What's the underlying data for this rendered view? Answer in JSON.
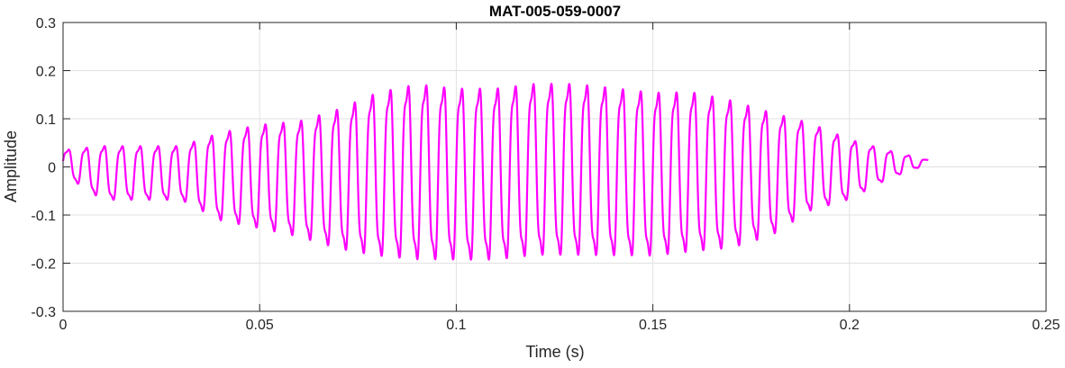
{
  "chart_data": {
    "type": "line",
    "title": "MAT-005-059-0007",
    "xlabel": "Time (s)",
    "ylabel": "Amplitude",
    "xlim": [
      0,
      0.25
    ],
    "ylim": [
      -0.3,
      0.3
    ],
    "xticks": [
      0,
      0.05,
      0.1,
      0.15,
      0.2,
      0.25
    ],
    "xtick_labels": [
      "0",
      "0.05",
      "0.1",
      "0.15",
      "0.2",
      "0.25"
    ],
    "yticks": [
      -0.3,
      -0.2,
      -0.1,
      0,
      0.1,
      0.2,
      0.3
    ],
    "ytick_labels": [
      "-0.3",
      "-0.2",
      "-0.1",
      "0",
      "0.1",
      "0.2",
      "0.3"
    ],
    "grid": true,
    "series": [
      {
        "color": "#ff00ff",
        "description_of_signal": "oscillating waveform, duration about 0.22 s, peak envelope about 0.21 near t=0.09-0.13 s",
        "envelope": {
          "t": [
            0,
            0.01,
            0.02,
            0.03,
            0.04,
            0.05,
            0.06,
            0.07,
            0.08,
            0.09,
            0.1,
            0.11,
            0.12,
            0.13,
            0.14,
            0.15,
            0.16,
            0.17,
            0.18,
            0.19,
            0.2,
            0.21,
            0.22
          ],
          "max": [
            0.04,
            0.055,
            0.055,
            0.055,
            0.09,
            0.11,
            0.12,
            0.15,
            0.19,
            0.21,
            0.2,
            0.2,
            0.21,
            0.21,
            0.2,
            0.19,
            0.19,
            0.17,
            0.14,
            0.11,
            0.07,
            0.04,
            0.015
          ],
          "min": [
            -0.02,
            -0.08,
            -0.08,
            -0.08,
            -0.13,
            -0.15,
            -0.17,
            -0.2,
            -0.22,
            -0.23,
            -0.23,
            -0.23,
            -0.22,
            -0.22,
            -0.22,
            -0.22,
            -0.21,
            -0.2,
            -0.17,
            -0.11,
            -0.08,
            -0.03,
            0.005
          ]
        }
      }
    ]
  }
}
